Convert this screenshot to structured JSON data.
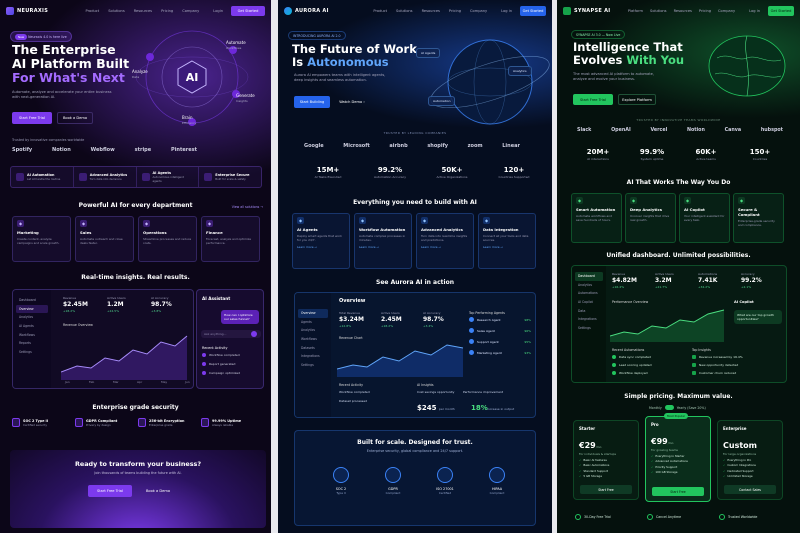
{
  "p1": {
    "brand": "NEURAXIS",
    "nav": [
      "Product",
      "Solutions",
      "Resources",
      "Pricing",
      "Company"
    ],
    "login": "Login",
    "cta": "Get Started",
    "badge_new": "New",
    "badge_text": "Neuraxis 4.0 is here  live",
    "h_line1": "The Enterprise",
    "h_line2": "AI Platform Built",
    "h_line3": "For What's Next",
    "sub": "Automate, analyze and accelerate your entire business with next-generation AI.",
    "btn_primary": "Start Free Trial",
    "btn_secondary": "Book a Demo",
    "trusted": "Trusted by innovative companies worldwide",
    "logos": [
      "Spotify",
      "Notion",
      "Webflow",
      "stripe",
      "Pinterest"
    ],
    "orbit": {
      "center": "AI",
      "labels": [
        "Analyze",
        "Automate",
        "Generate",
        "Brain"
      ],
      "sublabels": [
        "Data",
        "Workflows",
        "Insights",
        "Efficiency"
      ]
    },
    "features": [
      {
        "t": "AI Automation",
        "d": "Let AI handle the routine"
      },
      {
        "t": "Advanced Analytics",
        "d": "Turn data into decisions"
      },
      {
        "t": "AI Agents",
        "d": "Autonomous intelligent agents"
      },
      {
        "t": "Enterprise Secure",
        "d": "Built for scale & safety"
      }
    ],
    "dept_title": "Powerful AI for every department",
    "dept_link": "View all solutions →",
    "depts": [
      {
        "t": "Marketing",
        "d": "Create content, analyze campaigns and scale growth."
      },
      {
        "t": "Sales",
        "d": "Automate outreach and close deals faster."
      },
      {
        "t": "Operations",
        "d": "Streamline processes and reduce costs."
      },
      {
        "t": "Finance",
        "d": "Forecast, analyze and optimize performance."
      }
    ],
    "insights_title": "Real-time insights. Real results.",
    "dash": {
      "side": [
        "Dashboard",
        "Overview",
        "Analytics",
        "AI Agents",
        "Workflows",
        "Reports",
        "Settings"
      ],
      "kpis": [
        {
          "l": "Revenue",
          "v": "$2.45M",
          "c": "+18.2%"
        },
        {
          "l": "Active Users",
          "v": "1.2M",
          "c": "+24.5%"
        },
        {
          "l": "AI Accuracy",
          "v": "98.7%",
          "c": "+3.8%"
        }
      ],
      "chart_title": "Revenue Overview",
      "months": [
        "Jan",
        "Feb",
        "Mar",
        "Apr",
        "May",
        "Jun"
      ]
    },
    "assistant": {
      "title": "AI Assistant",
      "q": "How can I optimize our sales funnel?",
      "placeholder": "Ask anything...",
      "activity_title": "Recent Activity",
      "activity": [
        "Workflow completed",
        "Report generated",
        "Campaign optimized"
      ]
    },
    "security_title": "Enterprise grade security",
    "security": [
      {
        "t": "SOC 2 Type II",
        "d": "Certified security"
      },
      {
        "t": "GDPR Compliant",
        "d": "Privacy by design"
      },
      {
        "t": "256-bit Encryption",
        "d": "Enterprise grade"
      },
      {
        "t": "99.99% Uptime",
        "d": "Always reliable"
      }
    ],
    "cta_title": "Ready to transform your business?",
    "cta_sub": "Join thousands of teams building the future with AI.",
    "cta_primary": "Start Free Trial",
    "cta_secondary": "Book a Demo"
  },
  "p2": {
    "brand": "AURORA AI",
    "nav": [
      "Product",
      "Solutions",
      "Resources",
      "Pricing",
      "Company"
    ],
    "login": "Log in",
    "cta": "Get Started",
    "badge_text": "INTRODUCING AURORA AI 2.0",
    "h_line1": "The Future of Work",
    "h_line2_a": "Is",
    "h_line2_b": "Autonomous",
    "sub": "Aurora AI empowers teams with intelligent agents, deep insights and seamless automation.",
    "btn_primary": "Start Building",
    "btn_secondary": "Watch Demo ›",
    "globe_chips": [
      "AI Agents",
      "Analytics",
      "Automation"
    ],
    "trusted": "TRUSTED BY LEADING COMPANIES",
    "logos": [
      "Google",
      "Microsoft",
      "airbnb",
      "shopify",
      "zoom",
      "Linear"
    ],
    "stats": [
      {
        "v": "15M+",
        "l": "AI Tasks Executed"
      },
      {
        "v": "99.2%",
        "l": "Automation Accuracy"
      },
      {
        "v": "50K+",
        "l": "Active Organizations"
      },
      {
        "v": "120+",
        "l": "Countries Supported"
      }
    ],
    "build_title": "Everything you need to build with AI",
    "features": [
      {
        "t": "AI Agents",
        "d": "Deploy smart agents that work for you 24/7.",
        "l": "Learn more →"
      },
      {
        "t": "Workflow Automation",
        "d": "Automate complex processes in minutes.",
        "l": "Learn more →"
      },
      {
        "t": "Advanced Analytics",
        "d": "Turn data into real-time insights and predictions.",
        "l": "Learn more →"
      },
      {
        "t": "Data Integration",
        "d": "Connect all your tools and data sources.",
        "l": "Learn more →"
      }
    ],
    "action_title": "See Aurora AI in action",
    "dash": {
      "title": "Overview",
      "side": [
        "Overview",
        "Agents",
        "Analytics",
        "Workflows",
        "Datasets",
        "Integrations",
        "Settings"
      ],
      "kpis": [
        {
          "l": "Total Revenue",
          "v": "$3.24M",
          "c": "+12.8%"
        },
        {
          "l": "Active Users",
          "v": "2.45M",
          "c": "+18.2%"
        },
        {
          "l": "AI Accuracy",
          "v": "98.7%",
          "c": "+3.4%"
        }
      ],
      "chart_title": "Revenue Chart",
      "agents_title": "Top Performing Agents",
      "agents": [
        {
          "n": "Research Agent",
          "v": "98%"
        },
        {
          "n": "Sales Agent",
          "v": "96%"
        },
        {
          "n": "Support Agent",
          "v": "95%"
        },
        {
          "n": "Marketing Agent",
          "v": "93%"
        }
      ],
      "activity_title": "Recent Activity",
      "activity": [
        "Workflow completed",
        "Dataset processed"
      ],
      "insights_title": "AI Insights",
      "insights": [
        "Cost savings opportunity",
        "Performance improvement"
      ],
      "big1": "$245",
      "big1_unit": "per month",
      "big2": "18%",
      "big2_unit": "increase in output"
    },
    "trust_title": "Built for scale. Designed for trust.",
    "trust_sub": "Enterprise security, global compliance and 24/7 support.",
    "certs": [
      {
        "t": "SOC 2",
        "d": "Type II"
      },
      {
        "t": "GDPR",
        "d": "Compliant"
      },
      {
        "t": "ISO 27001",
        "d": "Certified"
      },
      {
        "t": "HIPAA",
        "d": "Compliant"
      }
    ]
  },
  "p3": {
    "brand": "SYNAPSE AI",
    "nav": [
      "Platform",
      "Solutions",
      "Resources",
      "Pricing",
      "Company"
    ],
    "login": "Log in",
    "cta": "Get Started",
    "badge_text": "SYNAPSE AI 3.0 — Now Live",
    "h_line1": "Intelligence That",
    "h_line2_a": "Evolves",
    "h_line2_b": "With You",
    "sub": "The most advanced AI platform to automate, analyze and evolve your business.",
    "btn_primary": "Start Free Trial",
    "btn_secondary": "Explore Platform",
    "trusted": "TRUSTED BY INNOVATIVE TEAMS WORLDWIDE",
    "logos": [
      "Slack",
      "OpenAI",
      "Vercel",
      "Notion",
      "Canva",
      "hubspot"
    ],
    "stats": [
      {
        "v": "20M+",
        "l": "AI interactions"
      },
      {
        "v": "99.9%",
        "l": "System uptime"
      },
      {
        "v": "60K+",
        "l": "Active teams"
      },
      {
        "v": "150+",
        "l": "Countries"
      }
    ],
    "works_title": "AI That Works The Way You Do",
    "features": [
      {
        "t": "Smart Automation",
        "d": "Automate workflows and save hundreds of hours."
      },
      {
        "t": "Deep Analytics",
        "d": "Uncover insights that drive real growth."
      },
      {
        "t": "AI Copilot",
        "d": "Your intelligent assistant for every task."
      },
      {
        "t": "Secure & Compliant",
        "d": "Enterprise-grade security and compliance."
      }
    ],
    "dash_title": "Unified dashboard. Unlimited possibilities.",
    "dash": {
      "side": [
        "Dashboard",
        "Analytics",
        "Automations",
        "AI Copilot",
        "Data",
        "Integrations",
        "Settings"
      ],
      "kpis": [
        {
          "l": "Revenue",
          "v": "$4.82M",
          "c": "+16.4%"
        },
        {
          "l": "Active Users",
          "v": "3.2M",
          "c": "+21.7%"
        },
        {
          "l": "Automations",
          "v": "7.41K",
          "c": "+34.2%"
        },
        {
          "l": "Accuracy",
          "v": "99.2%",
          "c": "+2.1%"
        }
      ],
      "chart_title": "Performance Overview",
      "copilot_title": "AI Copilot",
      "copilot_q": "What are our top growth opportunities?",
      "auto_title": "Recent Automations",
      "autos": [
        "Data sync completed",
        "Lead scoring updated",
        "Workflow deployed"
      ],
      "insights_title": "Top Insights",
      "insights": [
        "Revenue increased by 16.4%",
        "New opportunity detected",
        "Customer churn reduced"
      ]
    },
    "pricing_title": "Simple pricing. Maximum value.",
    "toggle_monthly": "Monthly",
    "toggle_yearly": "Yearly (Save 20%)",
    "plans": [
      {
        "n": "Starter",
        "p": "€29",
        "per": "/mo",
        "d": "For individuals & startups",
        "f": [
          "Basic AI features",
          "Basic Automations",
          "Standard Support",
          "5 GB Storage"
        ],
        "b": "Start Free"
      },
      {
        "n": "Pro",
        "p": "€99",
        "per": "/mo",
        "d": "For growing teams",
        "f": [
          "Everything in Starter",
          "Advanced Automations",
          "Priority Support",
          "100 GB Storage"
        ],
        "b": "Start Free",
        "tag": "Most Popular"
      },
      {
        "n": "Enterprise",
        "p": "Custom",
        "per": "",
        "d": "For large organizations",
        "f": [
          "Everything in Pro",
          "Custom Integrations",
          "Dedicated Support",
          "Unlimited Storage"
        ],
        "b": "Contact Sales"
      }
    ],
    "footer": [
      {
        "t": "30-Day Free Trial"
      },
      {
        "t": "Cancel Anytime"
      },
      {
        "t": "Trusted Worldwide"
      }
    ]
  },
  "colors": {
    "purple": "#7c3aed",
    "blue": "#2563eb",
    "green": "#22c55e"
  }
}
